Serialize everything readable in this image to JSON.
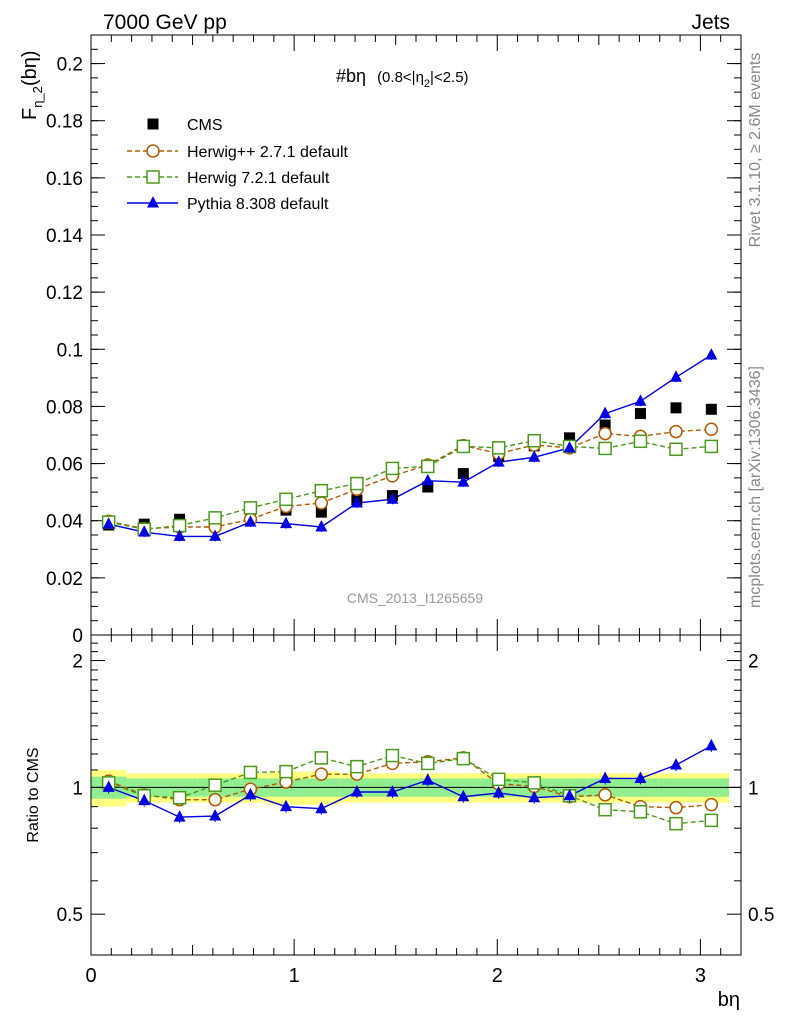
{
  "header": {
    "left": "7000 GeV pp",
    "right": "Jets"
  },
  "side_labels": {
    "rivet": "Rivet 3.1.10, ≥ 2.6M events",
    "mcplots": "mcplots.cern.ch [arXiv:1306.3436]"
  },
  "watermark": "CMS_2013_I1265659",
  "chart_data": [
    {
      "type": "scatter",
      "title_main": "#bη",
      "title_sub": "(0.8<|η",
      "title_sub_index": "2",
      "title_sub_tail": "|<2.5)",
      "ylabel": "F",
      "ylabel_sub": "η_2",
      "ylabel_tail": "(bη)",
      "ylim": [
        0,
        0.21
      ],
      "yticks": [
        "0",
        "0.02",
        "0.04",
        "0.06",
        "0.08",
        "0.1",
        "0.12",
        "0.14",
        "0.16",
        "0.18",
        "0.2"
      ],
      "x": [
        0.087,
        0.262,
        0.436,
        0.611,
        0.785,
        0.96,
        1.134,
        1.309,
        1.484,
        1.658,
        1.833,
        2.007,
        2.182,
        2.356,
        2.531,
        2.705,
        2.88,
        3.054
      ],
      "series": [
        {
          "name": "CMS",
          "color": "#000000",
          "marker": "square-filled",
          "values": [
            0.0385,
            0.0388,
            0.0405,
            0.0405,
            0.041,
            0.0437,
            0.043,
            0.0473,
            0.0488,
            0.0518,
            0.0565,
            0.0625,
            0.0662,
            0.069,
            0.0735,
            0.0775,
            0.0795,
            0.079
          ]
        },
        {
          "name": "Herwig++ 2.7.1 default",
          "color": "#b35900",
          "marker": "circle-open",
          "dashed": true,
          "values": [
            0.0398,
            0.0372,
            0.0378,
            0.0378,
            0.0405,
            0.045,
            0.0462,
            0.051,
            0.0557,
            0.0595,
            0.0663,
            0.0635,
            0.0665,
            0.0655,
            0.0705,
            0.0695,
            0.0712,
            0.072
          ]
        },
        {
          "name": "Herwig 7.2.1 default",
          "color": "#4a9a1a",
          "marker": "square-open",
          "dashed": true,
          "values": [
            0.0395,
            0.037,
            0.0383,
            0.041,
            0.0445,
            0.0475,
            0.0505,
            0.053,
            0.0583,
            0.059,
            0.066,
            0.0655,
            0.068,
            0.066,
            0.0653,
            0.0678,
            0.065,
            0.066
          ]
        },
        {
          "name": "Pythia 8.308 default",
          "color": "#0000e0",
          "marker": "triangle-filled",
          "values": [
            0.0388,
            0.036,
            0.0345,
            0.0345,
            0.0395,
            0.039,
            0.0378,
            0.0462,
            0.0475,
            0.054,
            0.0535,
            0.0605,
            0.0622,
            0.0655,
            0.0775,
            0.0818,
            0.0902,
            0.098
          ]
        }
      ]
    },
    {
      "type": "scatter",
      "ylabel": "Ratio to CMS",
      "xlabel": "bη",
      "scale": "log",
      "ylim": [
        0.4,
        2.3
      ],
      "xlim": [
        0,
        3.2
      ],
      "yticks": [
        "0.5",
        "1",
        "2"
      ],
      "xticks": [
        "0",
        "1",
        "2",
        "3"
      ],
      "x": [
        0.087,
        0.262,
        0.436,
        0.611,
        0.785,
        0.96,
        1.134,
        1.309,
        1.484,
        1.658,
        1.833,
        2.007,
        2.182,
        2.356,
        2.531,
        2.705,
        2.88,
        3.054
      ],
      "band_inner": [
        0.06,
        0.05,
        0.05,
        0.05,
        0.05,
        0.05,
        0.05,
        0.05,
        0.05,
        0.05,
        0.05,
        0.05,
        0.05,
        0.05,
        0.05,
        0.05,
        0.05,
        0.05
      ],
      "band_outer": [
        0.1,
        0.08,
        0.08,
        0.08,
        0.08,
        0.09,
        0.09,
        0.08,
        0.08,
        0.08,
        0.08,
        0.08,
        0.08,
        0.08,
        0.08,
        0.08,
        0.08,
        0.08
      ],
      "band_colors": {
        "inner": "#90ee90",
        "outer": "#ffff80"
      },
      "series": [
        {
          "name": "Herwig++ 2.7.1 default",
          "color": "#b35900",
          "marker": "circle-open",
          "dashed": true,
          "values": [
            1.035,
            0.96,
            0.935,
            0.935,
            0.99,
            1.03,
            1.075,
            1.075,
            1.14,
            1.15,
            1.175,
            1.02,
            1.005,
            0.95,
            0.96,
            0.9,
            0.895,
            0.91
          ]
        },
        {
          "name": "Herwig 7.2.1 default",
          "color": "#4a9a1a",
          "marker": "square-open",
          "dashed": true,
          "values": [
            1.025,
            0.955,
            0.945,
            1.012,
            1.085,
            1.09,
            1.175,
            1.12,
            1.19,
            1.14,
            1.17,
            1.045,
            1.025,
            0.955,
            0.885,
            0.875,
            0.82,
            0.835
          ]
        },
        {
          "name": "Pythia 8.308 default",
          "color": "#0000e0",
          "marker": "triangle-filled",
          "values": [
            1.0,
            0.93,
            0.85,
            0.855,
            0.96,
            0.9,
            0.89,
            0.975,
            0.975,
            1.04,
            0.95,
            0.97,
            0.945,
            0.955,
            1.05,
            1.05,
            1.13,
            1.255
          ]
        }
      ]
    }
  ]
}
